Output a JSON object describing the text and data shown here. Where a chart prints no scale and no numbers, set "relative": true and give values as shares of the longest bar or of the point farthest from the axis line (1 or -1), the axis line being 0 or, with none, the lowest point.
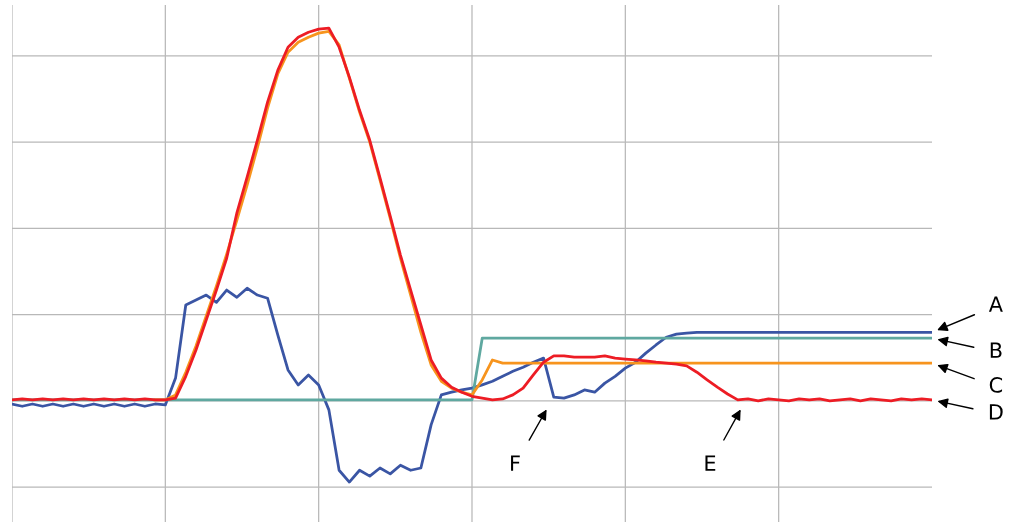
{
  "chart_data": {
    "type": "line",
    "relative": true,
    "grid": true,
    "marker": "none",
    "line_style": "solid",
    "categories": [
      null,
      null,
      null,
      null,
      null,
      null,
      null,
      null,
      null,
      null,
      null,
      null,
      null,
      null,
      null,
      null,
      null,
      null,
      null,
      null,
      null,
      null,
      null,
      null,
      null,
      null,
      null,
      null,
      null,
      null,
      null,
      null,
      null,
      null,
      null,
      null,
      null,
      null,
      null,
      null,
      null,
      null,
      null,
      null,
      null,
      null,
      null,
      null,
      null,
      null,
      null,
      null,
      null,
      null,
      null,
      null,
      null,
      null,
      null,
      null,
      null,
      null,
      null,
      null,
      null,
      null,
      null,
      null,
      null,
      null,
      null,
      null,
      null,
      null,
      null,
      null,
      null,
      null,
      null,
      null,
      null,
      null,
      null,
      null,
      null,
      null,
      null,
      null,
      null,
      null,
      null
    ],
    "series": [
      {
        "name": "A",
        "color": "#3a55a4",
        "values": [
          0.172,
          0.167,
          0.172,
          0.167,
          0.172,
          0.167,
          0.172,
          0.167,
          0.172,
          0.167,
          0.172,
          0.167,
          0.172,
          0.167,
          0.172,
          0.17,
          0.229,
          0.39,
          0.401,
          0.412,
          0.396,
          0.423,
          0.407,
          0.427,
          0.412,
          0.405,
          0.324,
          0.247,
          0.214,
          0.236,
          0.214,
          0.159,
          0.026,
          0,
          0.026,
          0.013,
          0.031,
          0.018,
          0.037,
          0.026,
          0.031,
          0.126,
          0.192,
          0.198,
          0.203,
          0.207,
          0.214,
          0.222,
          0.233,
          0.244,
          0.253,
          0.264,
          0.273,
          0.187,
          0.185,
          0.192,
          0.203,
          0.198,
          0.218,
          0.233,
          0.251,
          0.264,
          0.284,
          0.302,
          0.319,
          0.326,
          0.328,
          0.33,
          0.33,
          0.33,
          0.33,
          0.33,
          0.33,
          0.33,
          0.33,
          0.33,
          0.33,
          0.33,
          0.33,
          0.33,
          0.33,
          0.33,
          0.33,
          0.33,
          0.33,
          0.33,
          0.33,
          0.33,
          0.33,
          0.33,
          0.33
        ]
      },
      {
        "name": "B",
        "color": "#5fa8a0",
        "values": [
          0.181,
          0.181,
          0.181,
          0.181,
          0.181,
          0.181,
          0.181,
          0.181,
          0.181,
          0.181,
          0.181,
          0.181,
          0.181,
          0.181,
          0.181,
          0.181,
          0.181,
          0.181,
          0.181,
          0.181,
          0.181,
          0.181,
          0.181,
          0.181,
          0.181,
          0.181,
          0.181,
          0.181,
          0.181,
          0.181,
          0.181,
          0.181,
          0.181,
          0.181,
          0.181,
          0.181,
          0.181,
          0.181,
          0.181,
          0.181,
          0.181,
          0.181,
          0.181,
          0.181,
          0.181,
          0.181,
          0.317,
          0.317,
          0.317,
          0.317,
          0.317,
          0.317,
          0.317,
          0.317,
          0.317,
          0.317,
          0.317,
          0.317,
          0.317,
          0.317,
          0.317,
          0.317,
          0.317,
          0.317,
          0.317,
          0.317,
          0.317,
          0.317,
          0.317,
          0.317,
          0.317,
          0.317,
          0.317,
          0.317,
          0.317,
          0.317,
          0.317,
          0.317,
          0.317,
          0.317,
          0.317,
          0.317,
          0.317,
          0.317,
          0.317,
          0.317,
          0.317,
          0.317,
          0.317,
          0.317,
          0.317
        ]
      },
      {
        "name": "C",
        "color": "#f7941d",
        "values": [
          null,
          null,
          null,
          null,
          null,
          null,
          null,
          null,
          null,
          null,
          null,
          null,
          null,
          null,
          0.181,
          0.181,
          0.192,
          0.242,
          0.3,
          0.366,
          0.432,
          0.502,
          0.577,
          0.654,
          0.736,
          0.824,
          0.899,
          0.947,
          0.969,
          0.98,
          0.989,
          0.993,
          0.963,
          0.89,
          0.815,
          0.749,
          0.665,
          0.581,
          0.493,
          0.412,
          0.33,
          0.258,
          0.222,
          0.207,
          0.198,
          0.192,
          0.225,
          0.269,
          0.262,
          0.262,
          0.262,
          0.262,
          0.262,
          0.262,
          0.262,
          0.262,
          0.262,
          0.262,
          0.262,
          0.262,
          0.262,
          0.262,
          0.262,
          0.262,
          0.262,
          0.262,
          0.262,
          0.262,
          0.262,
          0.262,
          0.262,
          0.262,
          0.262,
          0.262,
          0.262,
          0.262,
          0.262,
          0.262,
          0.262,
          0.262,
          0.262,
          0.262,
          0.262,
          0.262,
          0.262,
          0.262,
          0.262,
          0.262,
          0.262,
          0.262,
          0.262
        ]
      },
      {
        "name": "D",
        "color": "#ed1c24",
        "values": [
          0.181,
          0.183,
          0.181,
          0.183,
          0.181,
          0.183,
          0.181,
          0.183,
          0.181,
          0.183,
          0.181,
          0.183,
          0.181,
          0.183,
          0.181,
          0.181,
          0.185,
          0.233,
          0.291,
          0.357,
          0.423,
          0.493,
          0.593,
          0.672,
          0.753,
          0.837,
          0.907,
          0.958,
          0.98,
          0.991,
          0.998,
          1.0,
          0.958,
          0.892,
          0.819,
          0.753,
          0.67,
          0.586,
          0.5,
          0.423,
          0.346,
          0.269,
          0.229,
          0.209,
          0.198,
          0.189,
          0.185,
          0.181,
          0.183,
          0.192,
          0.207,
          0.236,
          0.264,
          0.278,
          0.278,
          0.275,
          0.275,
          0.275,
          0.278,
          0.273,
          0.271,
          0.269,
          0.267,
          0.264,
          0.262,
          0.26,
          0.256,
          0.242,
          0.225,
          0.209,
          0.194,
          0.181,
          0.183,
          0.179,
          0.183,
          0.181,
          0.179,
          0.183,
          0.181,
          0.183,
          0.179,
          0.181,
          0.183,
          0.179,
          0.183,
          0.181,
          0.179,
          0.183,
          0.181,
          0.183,
          0.181
        ]
      }
    ],
    "annotations": [
      "F",
      "E"
    ]
  }
}
